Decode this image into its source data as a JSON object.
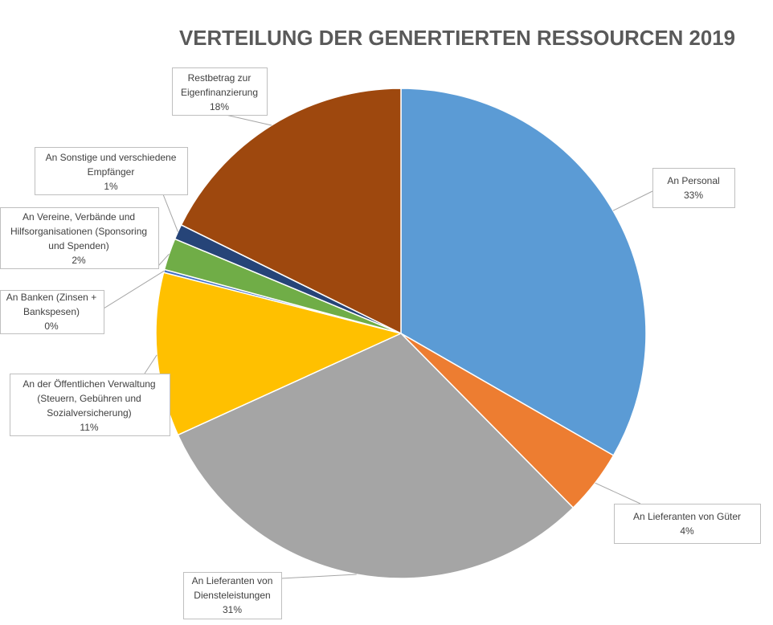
{
  "chart_data": {
    "type": "pie",
    "title": "VERTEILUNG DER GENERTIERTEN RESSOURCEN 2019",
    "categories": [
      "An Personal",
      "An Lieferanten von Güter",
      "An Lieferanten von Diensteleistungen",
      "An der Öffentlichen Verwaltung (Steuern, Gebühren und Sozialversicherung)",
      "An Banken (Zinsen + Bankspesen)",
      "An Vereine, Verbände und Hilfsorganisationen (Sponsoring und Spenden)",
      "An Sonstige und verschiedene Empfänger",
      "Restbetrag zur Eigenfinanzierung"
    ],
    "values": [
      33.3,
      4.3,
      30.6,
      10.8,
      0.2,
      2.1,
      1.0,
      17.7
    ],
    "data_labels": [
      "33%",
      "4%",
      "31%",
      "11%",
      "0%",
      "2%",
      "1%",
      "18%"
    ],
    "colors": [
      "#5B9BD5",
      "#ED7D31",
      "#A5A5A5",
      "#FFC000",
      "#4472C4",
      "#70AD47",
      "#264478",
      "#9E480E"
    ],
    "legend": "none"
  }
}
